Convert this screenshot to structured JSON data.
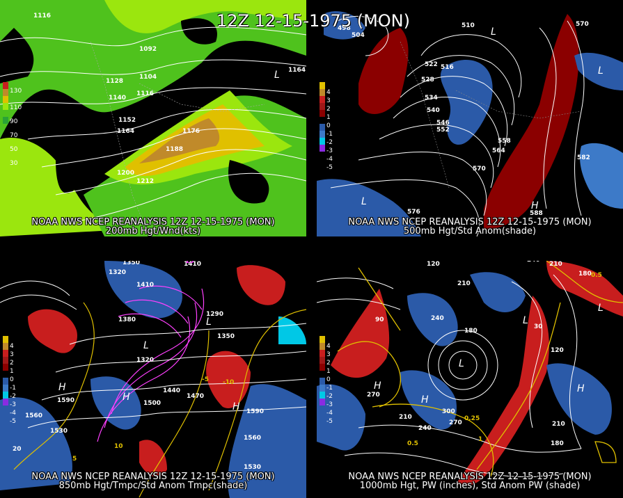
{
  "main_title": "12Z 12-15-1975 (MON)",
  "panels": [
    {
      "title": "NOAA NWS NCEP REANALYSIS 12Z 12-15-1975 (MON)",
      "subtitle": "200mb Hgt/Wnd(kts)",
      "legend": [
        "130",
        "110",
        "90",
        "70",
        "50",
        "30"
      ],
      "labels": [
        "1116",
        "1092",
        "1104",
        "1128",
        "1116",
        "1140",
        "1152",
        "1164",
        "1176",
        "1188",
        "1200",
        "1212",
        "1164",
        "1164"
      ],
      "centers": [
        "L"
      ]
    },
    {
      "title": "NOAA NWS NCEP REANALYSIS 12Z 12-15-1975 (MON)",
      "subtitle": "500mb Hgt/Std Anom(shade)",
      "legend": [
        "4",
        "3",
        "2",
        "1",
        "0",
        "-1",
        "-2",
        "-3",
        "-4",
        "-5"
      ],
      "labels": [
        "498",
        "504",
        "510",
        "516",
        "522",
        "528",
        "534",
        "540",
        "546",
        "552",
        "558",
        "564",
        "570",
        "570",
        "576",
        "582",
        "588"
      ],
      "centers": [
        "L",
        "L",
        "H",
        "L"
      ]
    },
    {
      "title": "NOAA NWS NCEP REANALYSIS 12Z 12-15-1975 (MON)",
      "subtitle": "850mb Hgt/Tmpc/Std Anom Tmpc(shade)",
      "legend": [
        "4",
        "3",
        "2",
        "1",
        "0",
        "-1",
        "-2",
        "-3",
        "-4",
        "-5"
      ],
      "labels": [
        "1350",
        "1320",
        "1410",
        "1380",
        "1410",
        "1290",
        "1350",
        "1320",
        "1440",
        "1470",
        "1500",
        "1590",
        "1560",
        "1530",
        "1590",
        "1560",
        "1530",
        "15",
        "10",
        "5",
        "-10",
        "-5",
        "20"
      ],
      "centers": [
        "L",
        "H",
        "H",
        "H",
        "L"
      ]
    },
    {
      "title": "NOAA NWS NCEP REANALYSIS 12Z 12-15-1975 (MON)",
      "subtitle": "1000mb Hgt, PW (inches), Std Anom PW (shade)",
      "legend": [
        "4",
        "3",
        "2",
        "1",
        "0",
        "-1",
        "-2",
        "-3",
        "-4",
        "-5"
      ],
      "labels": [
        "240",
        "210",
        "180",
        "120",
        "210",
        "240",
        "180",
        "90",
        "30",
        "270",
        "300",
        "270",
        "240",
        "210",
        "180",
        "120",
        "210",
        "0.5",
        "0.25",
        "1",
        "0.5"
      ],
      "centers": [
        "L",
        "L",
        "H",
        "H",
        "H",
        "L"
      ]
    }
  ],
  "colors": {
    "green_light": "#9be60e",
    "green_mid": "#4fc21d",
    "green_dark": "#2aa336",
    "yellow": "#e0c000",
    "orange": "#c08a2a",
    "red_dark": "#8b0000",
    "red_mid": "#c81e1e",
    "blue": "#2b5aa8",
    "blue_light": "#3d7ac8",
    "cyan": "#00c8e6"
  }
}
